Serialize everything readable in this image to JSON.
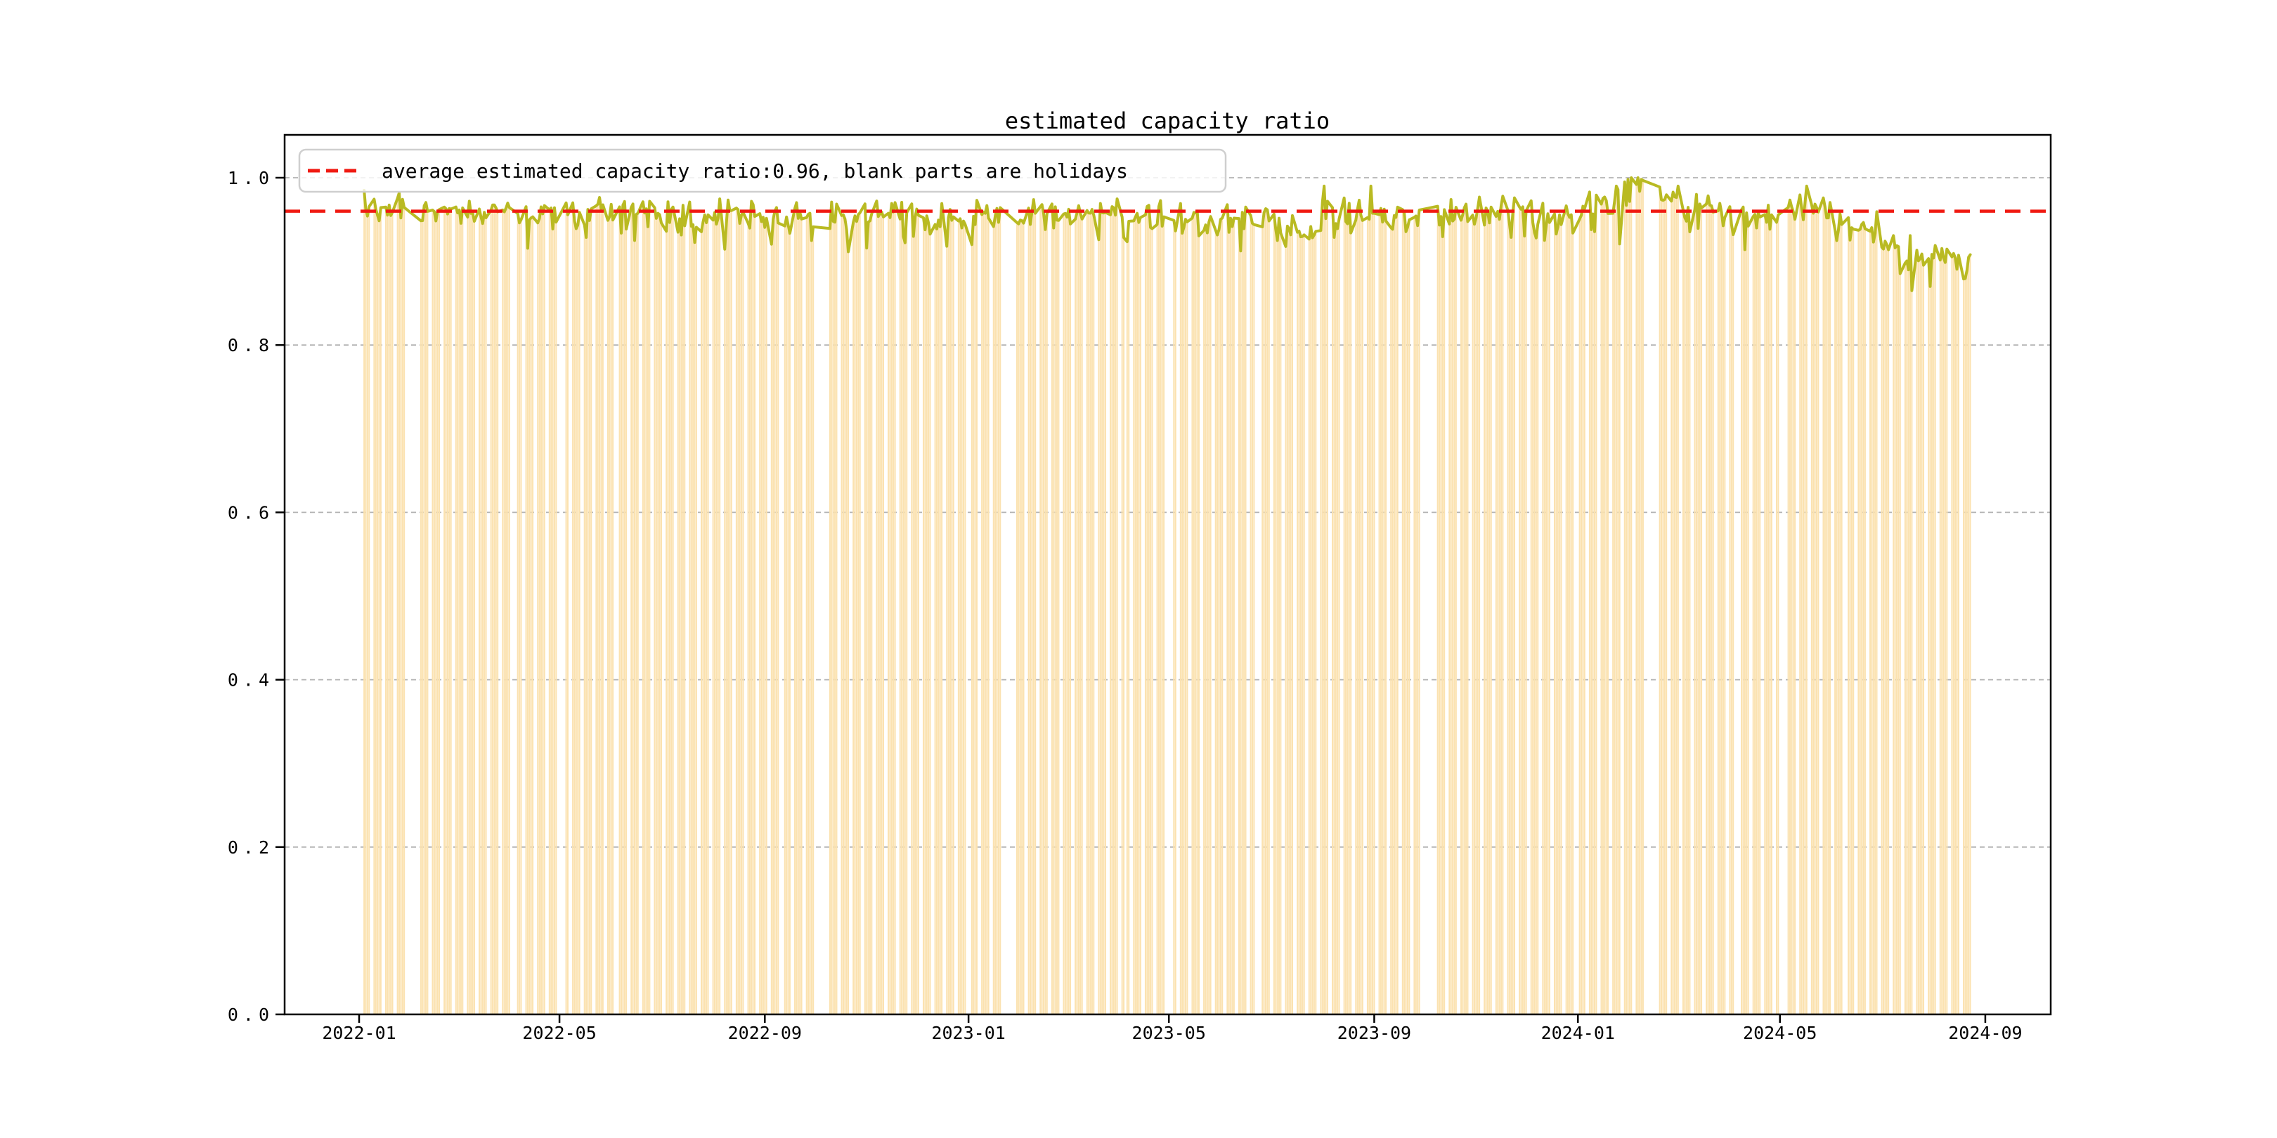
{
  "figure": {
    "title": "estimated capacity ratio",
    "background": "#ffffff",
    "legend": {
      "label": "average estimated capacity ratio:0.96, blank parts are holidays",
      "marker_color": "#f01a12",
      "box_border": "#cfcfcf"
    }
  },
  "chart_data": {
    "type": "bar+line",
    "title": "estimated capacity ratio",
    "xlabel": "",
    "ylabel": "",
    "legend": [
      "average estimated capacity ratio:0.96, blank parts are holidays"
    ],
    "average_capacity_ratio": 0.96,
    "ylim": [
      0.0,
      1.05
    ],
    "grid": "horizontal-dashed",
    "y_ticks": [
      {
        "label": "0.0",
        "value": 0.0
      },
      {
        "label": "0.2",
        "value": 0.2
      },
      {
        "label": "0.4",
        "value": 0.4
      },
      {
        "label": "0.6",
        "value": 0.6
      },
      {
        "label": "0.8",
        "value": 0.8
      },
      {
        "label": "1.0",
        "value": 1.0
      }
    ],
    "x_ticks": [
      {
        "label": "2022-01",
        "day": 0
      },
      {
        "label": "2022-05",
        "day": 120
      },
      {
        "label": "2022-09",
        "day": 243
      },
      {
        "label": "2023-01",
        "day": 365
      },
      {
        "label": "2023-05",
        "day": 485
      },
      {
        "label": "2023-09",
        "day": 608
      },
      {
        "label": "2024-01",
        "day": 730
      },
      {
        "label": "2024-05",
        "day": 851
      },
      {
        "label": "2024-09",
        "day": 974
      }
    ],
    "colors": {
      "bar": "#fbe2b0",
      "line": "#b9ba22",
      "average_line": "#f01a12",
      "grid": "#b3b3b3",
      "spine": "#000000"
    },
    "series": {
      "name": "estimated capacity ratio (working days only, blank parts are holidays)",
      "start": "2022-01-04",
      "end": "2024-08-23",
      "frequency": "working-day",
      "value_range_typical": [
        0.92,
        1.0
      ],
      "final_period_low": 0.86
    },
    "holiday_blank_ranges": [
      [
        "2022-01-03",
        "2022-01-03"
      ],
      [
        "2022-01-31",
        "2022-02-04"
      ],
      [
        "2022-04-04",
        "2022-04-05"
      ],
      [
        "2022-05-02",
        "2022-05-04"
      ],
      [
        "2022-06-03",
        "2022-06-03"
      ],
      [
        "2022-09-12",
        "2022-09-12"
      ],
      [
        "2022-10-03",
        "2022-10-07"
      ],
      [
        "2023-01-02",
        "2023-01-02"
      ],
      [
        "2023-01-23",
        "2023-01-27"
      ],
      [
        "2023-04-05",
        "2023-04-05"
      ],
      [
        "2023-05-01",
        "2023-05-03"
      ],
      [
        "2023-06-22",
        "2023-06-23"
      ],
      [
        "2023-09-29",
        "2023-09-29"
      ],
      [
        "2023-10-02",
        "2023-10-06"
      ],
      [
        "2024-01-01",
        "2024-01-01"
      ],
      [
        "2024-02-12",
        "2024-02-16"
      ],
      [
        "2024-04-04",
        "2024-04-05"
      ],
      [
        "2024-05-01",
        "2024-05-03"
      ],
      [
        "2024-06-10",
        "2024-06-10"
      ]
    ],
    "monthly_mean_and_jitter": {
      "2022-01": [
        0.965,
        0.013
      ],
      "2022-02": [
        0.96,
        0.01
      ],
      "2022-03": [
        0.961,
        0.011
      ],
      "2022-04": [
        0.956,
        0.013
      ],
      "2022-05": [
        0.959,
        0.013
      ],
      "2022-06": [
        0.956,
        0.016
      ],
      "2022-07": [
        0.953,
        0.016
      ],
      "2022-08": [
        0.96,
        0.014
      ],
      "2022-09": [
        0.95,
        0.016
      ],
      "2022-10": [
        0.949,
        0.016
      ],
      "2022-11": [
        0.956,
        0.014
      ],
      "2022-12": [
        0.946,
        0.016
      ],
      "2023-01": [
        0.953,
        0.016
      ],
      "2023-02": [
        0.959,
        0.011
      ],
      "2023-03": [
        0.961,
        0.011
      ],
      "2023-04": [
        0.956,
        0.013
      ],
      "2023-05": [
        0.949,
        0.014
      ],
      "2023-06": [
        0.951,
        0.015
      ],
      "2023-07": [
        0.94,
        0.013
      ],
      "2023-08": [
        0.956,
        0.016
      ],
      "2023-09": [
        0.953,
        0.015
      ],
      "2023-10": [
        0.956,
        0.013
      ],
      "2023-11": [
        0.96,
        0.013
      ],
      "2023-12": [
        0.95,
        0.015
      ],
      "2024-01": [
        0.967,
        0.015
      ],
      "2024-02": [
        0.985,
        0.012
      ],
      "2024-03": [
        0.964,
        0.013
      ],
      "2024-04": [
        0.956,
        0.015
      ],
      "2024-05": [
        0.964,
        0.016
      ],
      "2024-06": [
        0.938,
        0.016
      ],
      "2024-07": [
        0.905,
        0.018
      ],
      "2024-08": [
        0.903,
        0.018
      ]
    },
    "notable_points": {
      "2022-01-04": 0.985,
      "2022-06-15": 0.925,
      "2022-09-29": 0.925,
      "2022-12-19": 0.918,
      "2023-01-03": 0.92,
      "2023-07-05": 0.925,
      "2023-08-02": 0.99,
      "2023-08-30": 0.99,
      "2024-01-24": 0.99,
      "2024-01-29": 0.995,
      "2024-01-31": 0.998,
      "2024-02-02": 1.0,
      "2024-02-06": 1.0,
      "2024-02-08": 0.998,
      "2024-03-01": 0.99,
      "2024-05-17": 0.99,
      "2024-07-19": 0.865,
      "2024-07-30": 0.87,
      "2024-08-22": 0.905,
      "2024-08-23": 0.908
    }
  }
}
